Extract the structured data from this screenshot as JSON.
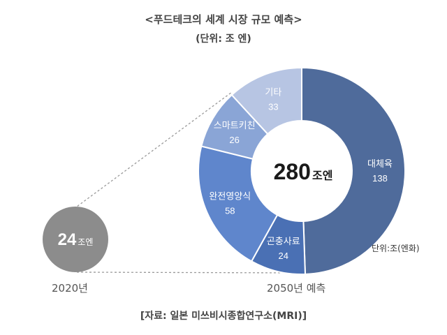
{
  "chart_data": {
    "type": "pie",
    "title": "<푸드테크의 세계 시장 규모 예측>",
    "subtitle": "(단위: 조 엔)",
    "past": {
      "year": "2020년",
      "value": 24,
      "value_text": "24",
      "unit": "조엔"
    },
    "forecast": {
      "year": "2050년 예측",
      "total": 280,
      "total_text": "280",
      "unit": "조엔",
      "unit_note": "단위:조(엔화)",
      "slices": [
        {
          "label": "대체육",
          "value": 138,
          "value_text": "138",
          "color": "#4f6b9b"
        },
        {
          "label": "곤충사료",
          "value": 24,
          "value_text": "24",
          "color": "#4a70b4"
        },
        {
          "label": "완전영양식",
          "value": 58,
          "value_text": "58",
          "color": "#5f86cc"
        },
        {
          "label": "스마트키친",
          "value": 26,
          "value_text": "26",
          "color": "#8aa5d6"
        },
        {
          "label": "기타",
          "value": 33,
          "value_text": "33",
          "color": "#b7c5e3"
        }
      ]
    },
    "source": "[자료: 일본 미쓰비시종합연구소(MRI)]",
    "past_circle_color": "#8c8c8c",
    "connector_color": "#999999"
  }
}
